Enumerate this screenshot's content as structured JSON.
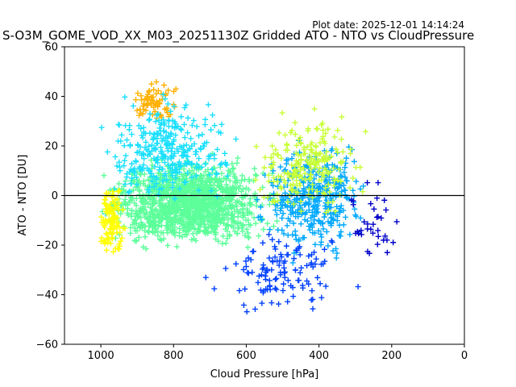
{
  "plot_date": "Plot date: 2025-12-01 14:14:24",
  "chart_data": {
    "type": "scatter",
    "title": "S-O3M_GOME_VOD_XX_M03_20251130Z Gridded ATO - NTO vs CloudPressure",
    "xlabel": "Cloud Pressure [hPa]",
    "ylabel": "ATO - NTO [DU]",
    "xlim": [
      1100,
      0
    ],
    "ylim": [
      -60,
      60
    ],
    "x_inverted": true,
    "xticks": [
      1000,
      800,
      600,
      400,
      200,
      0
    ],
    "yticks": [
      -60,
      -40,
      -20,
      0,
      20,
      40,
      60
    ],
    "reference_line_y": 0,
    "marker": "+",
    "grid": false,
    "colors": {
      "dominant": "#5CFF9A",
      "cyan": "#1ADFFF",
      "blue_light": "#00A8FF",
      "blue": "#0040FF",
      "navy": "#0000C8",
      "yellow_green": "#C8FF37",
      "yellow": "#FFFF00",
      "orange": "#FFB000",
      "green": "#7FFF7A"
    },
    "clusters": [
      {
        "name": "core",
        "x_center": 760,
        "x_spread": 170,
        "y_center": -3,
        "y_spread": 10,
        "color": "dominant",
        "count": 1400
      },
      {
        "name": "upper-left-orange",
        "x_center": 850,
        "x_spread": 50,
        "y_center": 38,
        "y_spread": 5,
        "color": "orange",
        "count": 70
      },
      {
        "name": "upper-cyan",
        "x_center": 820,
        "x_spread": 130,
        "y_center": 18,
        "y_spread": 12,
        "color": "cyan",
        "count": 320
      },
      {
        "name": "right-tail-mixed",
        "x_center": 420,
        "x_spread": 110,
        "y_center": 0,
        "y_spread": 14,
        "color": "blue_light",
        "count": 380
      },
      {
        "name": "right-tail-yellow",
        "x_center": 430,
        "x_spread": 110,
        "y_center": 12,
        "y_spread": 12,
        "color": "yellow_green",
        "count": 220
      },
      {
        "name": "left-edge-yellow",
        "x_center": 970,
        "x_spread": 25,
        "y_center": -10,
        "y_spread": 9,
        "color": "yellow",
        "count": 110
      },
      {
        "name": "lower-blue",
        "x_center": 500,
        "x_spread": 140,
        "y_center": -30,
        "y_spread": 10,
        "color": "blue",
        "count": 120
      },
      {
        "name": "far-right-navy",
        "x_center": 260,
        "x_spread": 50,
        "y_center": -12,
        "y_spread": 10,
        "color": "navy",
        "count": 35
      }
    ]
  }
}
